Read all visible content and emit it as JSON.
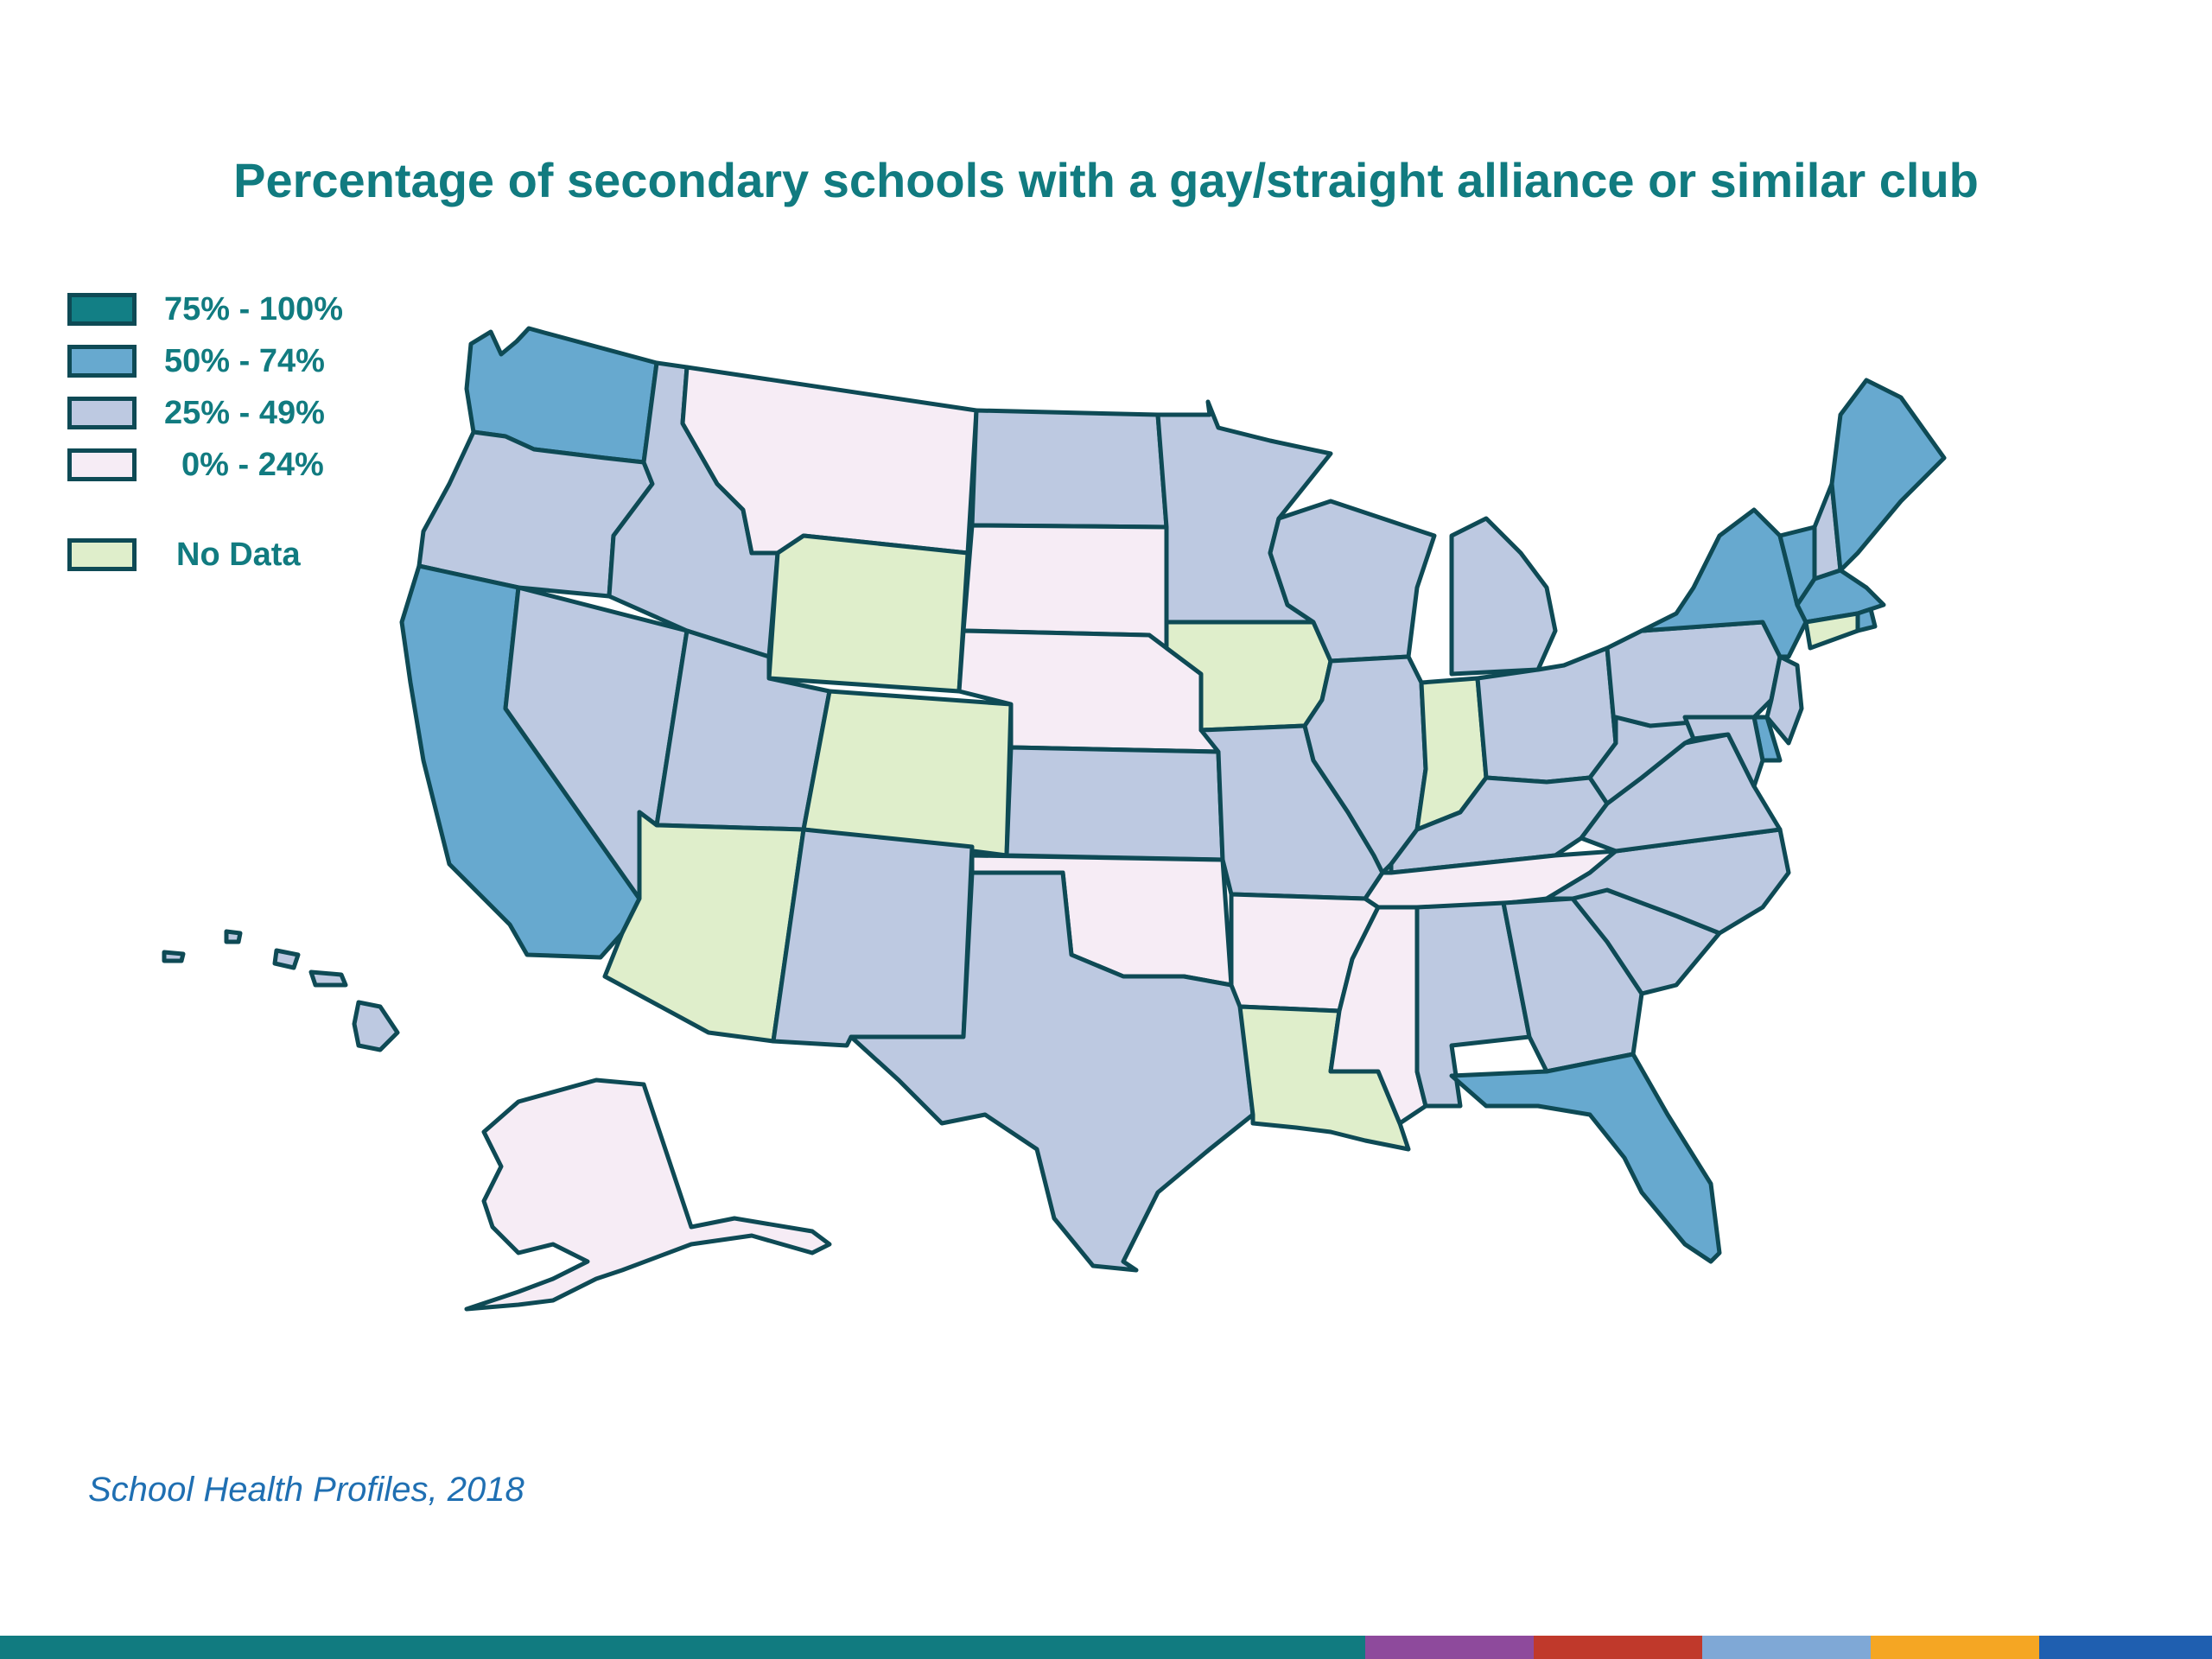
{
  "title": "Percentage of secondary schools with a gay/straight alliance or similar club",
  "source": "School Health Profiles, 2018",
  "legend": [
    {
      "label": "75% - 100%",
      "color": "#127f85"
    },
    {
      "label": "50% - 74%",
      "color": "#67a9cf"
    },
    {
      "label": "25% - 49%",
      "color": "#bdc9e1"
    },
    {
      "label": "0% - 24%",
      "color": "#f6ecf5"
    },
    {
      "label": "No Data",
      "color": "#dfeecb"
    }
  ],
  "colors": {
    "stroke": "#0e4a55",
    "title": "#117b80",
    "source": "#1f6fb2"
  },
  "states": {
    "WA": "50% - 74%",
    "OR": "25% - 49%",
    "CA": "50% - 74%",
    "NV": "25% - 49%",
    "ID": "25% - 49%",
    "MT": "0% - 24%",
    "WY": "No Data",
    "UT": "25% - 49%",
    "AZ": "No Data",
    "CO": "No Data",
    "NM": "25% - 49%",
    "ND": "25% - 49%",
    "SD": "0% - 24%",
    "NE": "0% - 24%",
    "KS": "25% - 49%",
    "OK": "0% - 24%",
    "TX": "25% - 49%",
    "MN": "25% - 49%",
    "IA": "No Data",
    "MO": "25% - 49%",
    "AR": "0% - 24%",
    "LA": "No Data",
    "WI": "25% - 49%",
    "IL": "25% - 49%",
    "MI": "25% - 49%",
    "IN": "No Data",
    "OH": "25% - 49%",
    "KY": "25% - 49%",
    "TN": "0% - 24%",
    "MS": "0% - 24%",
    "AL": "25% - 49%",
    "GA": "25% - 49%",
    "FL": "50% - 74%",
    "SC": "25% - 49%",
    "NC": "25% - 49%",
    "VA": "25% - 49%",
    "WV": "25% - 49%",
    "PA": "25% - 49%",
    "NY": "50% - 74%",
    "VT": "50% - 74%",
    "NH": "25% - 49%",
    "ME": "50% - 74%",
    "MA": "50% - 74%",
    "RI": "50% - 74%",
    "CT": "No Data",
    "NJ": "25% - 49%",
    "DE": "50% - 74%",
    "MD": "25% - 49%",
    "AK": "0% - 24%",
    "HI": "25% - 49%"
  },
  "footer_colors": [
    "#117b80",
    "#8e4a9c",
    "#c0392b",
    "#7fa8d6",
    "#f5a623",
    "#1f5fb0"
  ]
}
